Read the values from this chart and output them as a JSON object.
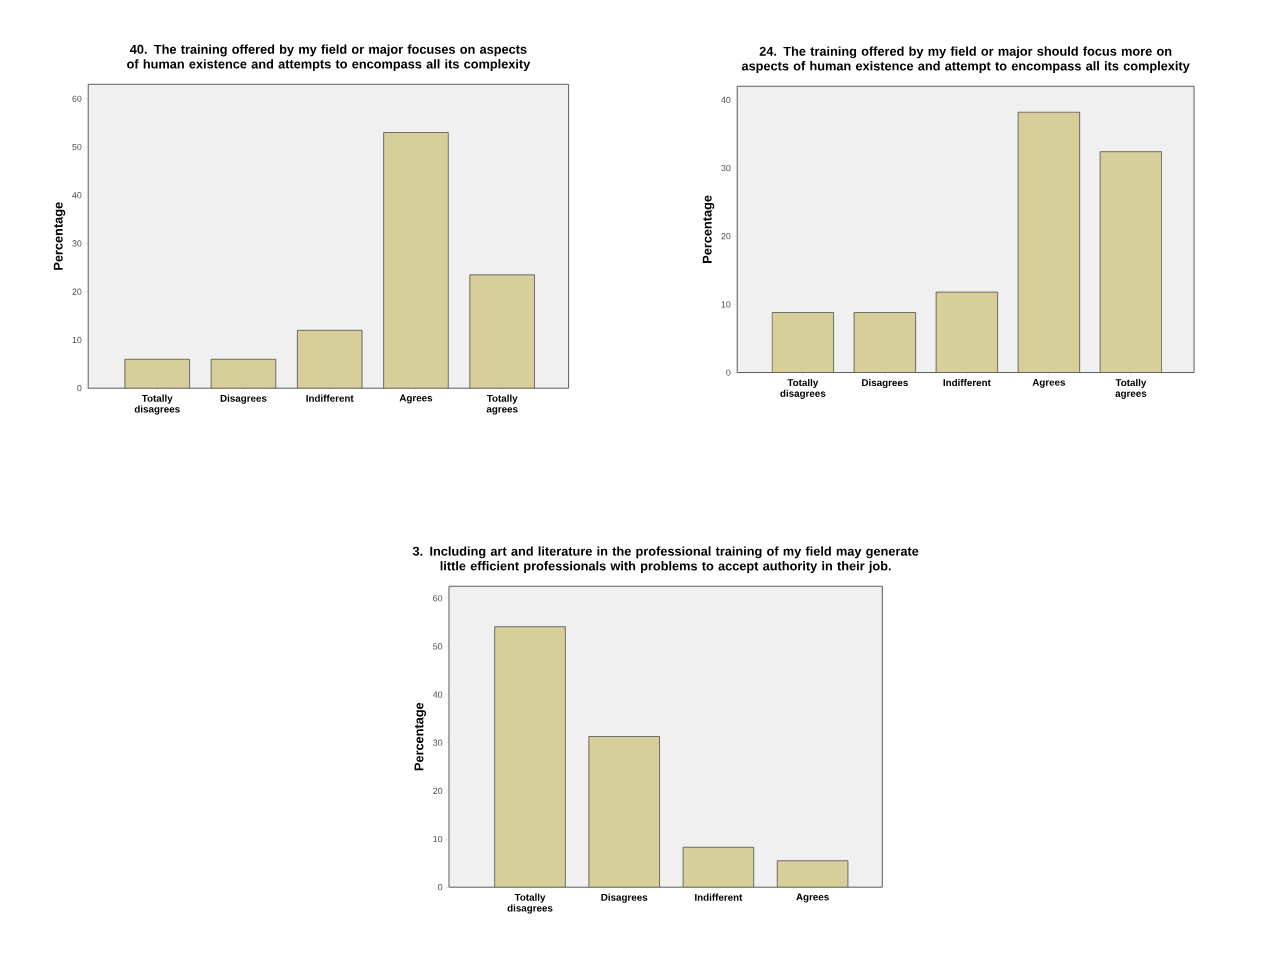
{
  "chart_data": [
    {
      "type": "bar",
      "title": "40. The training offered by my field or major focuses on aspects of human existence and attempts to encompass all its complexity",
      "ylabel": "Percentage",
      "categories": [
        "Totally disagrees",
        "Disagrees",
        "Indifferent",
        "Agrees",
        "Totally agrees"
      ],
      "values": [
        6,
        6,
        12,
        53,
        23.5
      ],
      "color": "#d6cf9a",
      "ylim": [
        0,
        63
      ],
      "yticks": [
        0,
        10,
        20,
        30,
        40,
        50,
        60
      ]
    },
    {
      "type": "bar",
      "title": "24. The training offered by my field or major should focus more on aspects of human existence and attempt to encompass all its complexity",
      "ylabel": "Percentage",
      "categories": [
        "Totally disagrees",
        "Disagrees",
        "Indifferent",
        "Agrees",
        "Totally agrees"
      ],
      "values": [
        8.8,
        8.8,
        11.8,
        38.2,
        32.4
      ],
      "color": "#d6cf9a",
      "ylim": [
        0,
        42
      ],
      "yticks": [
        0,
        10,
        20,
        30,
        40
      ]
    },
    {
      "type": "bar",
      "title": "3. Including art and literature in the professional training of my field may generate little efficient professionals with problems to accept authority in their job.",
      "ylabel": "Percentage",
      "categories": [
        "Totally disagrees",
        "Disagrees",
        "Indifferent",
        "Agrees"
      ],
      "values": [
        54.1,
        31.3,
        8.3,
        5.5
      ],
      "color": "#d6cf9a",
      "ylim": [
        0,
        62.5
      ],
      "yticks": [
        0,
        10,
        20,
        30,
        40,
        50,
        60
      ]
    }
  ]
}
